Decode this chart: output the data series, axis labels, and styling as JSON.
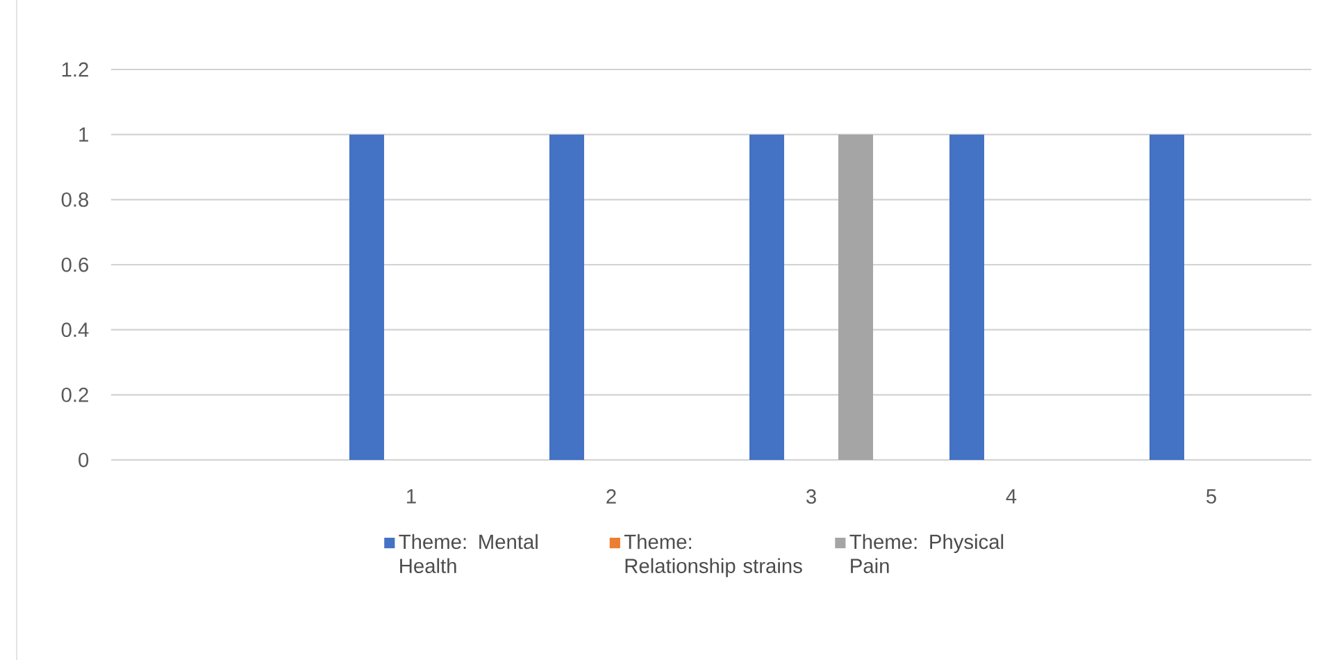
{
  "chart_data": {
    "type": "bar",
    "categories": [
      null,
      "1",
      "2",
      "3",
      "4",
      "5"
    ],
    "series": [
      {
        "name": "Theme: Mental Health",
        "color": "#4472c4",
        "values": [
          null,
          1,
          1,
          1,
          1,
          1
        ]
      },
      {
        "name": "Theme: Relationship strains",
        "color": "#ed7d31",
        "values": [
          null,
          0,
          0,
          0,
          0,
          0
        ]
      },
      {
        "name": "Theme: Physical Pain",
        "color": "#a5a5a5",
        "values": [
          null,
          0,
          0,
          1,
          0,
          0
        ]
      }
    ],
    "ylim": [
      0,
      1.2
    ],
    "yticks": [
      0,
      0.2,
      0.4,
      0.6,
      0.8,
      1,
      1.2
    ],
    "grid": "y",
    "legend": "bottom"
  }
}
